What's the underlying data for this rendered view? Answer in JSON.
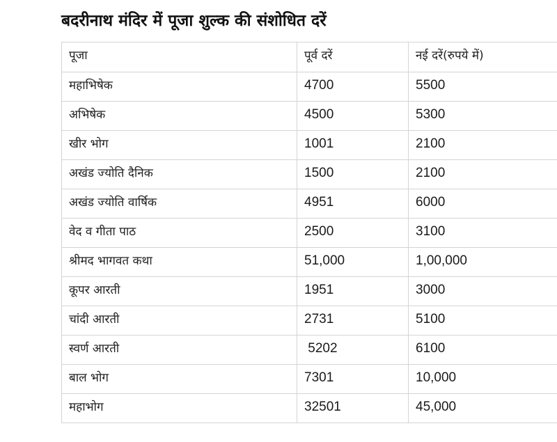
{
  "title": "बदरीनाथ मंदिर में पूजा शुल्क की संशोधित दरें",
  "table": {
    "headers": [
      "पूजा",
      "पूर्व दरें",
      "नई दरें(रुपये में)"
    ],
    "rows": [
      [
        "महाभिषेक",
        "4700",
        "5500"
      ],
      [
        "अभिषेक",
        "4500",
        "5300"
      ],
      [
        "खीर भोग",
        "1001",
        "2100"
      ],
      [
        "अखंड ज्योति दैनिक",
        "1500",
        "2100"
      ],
      [
        "अखंड ज्योति वार्षिक",
        "4951",
        "6000"
      ],
      [
        "वेद व गीता पाठ",
        "2500",
        "3100"
      ],
      [
        "श्रीमद भागवत कथा",
        "51,000",
        "1,00,000"
      ],
      [
        "कूपर आरती",
        "1951",
        "3000"
      ],
      [
        "चांदी आरती",
        "2731",
        "5100"
      ],
      [
        "स्वर्ण आरती",
        " 5202",
        "6100"
      ],
      [
        "बाल भोग",
        "7301",
        "10,000"
      ],
      [
        "महाभोग",
        "32501",
        "45,000"
      ]
    ]
  }
}
